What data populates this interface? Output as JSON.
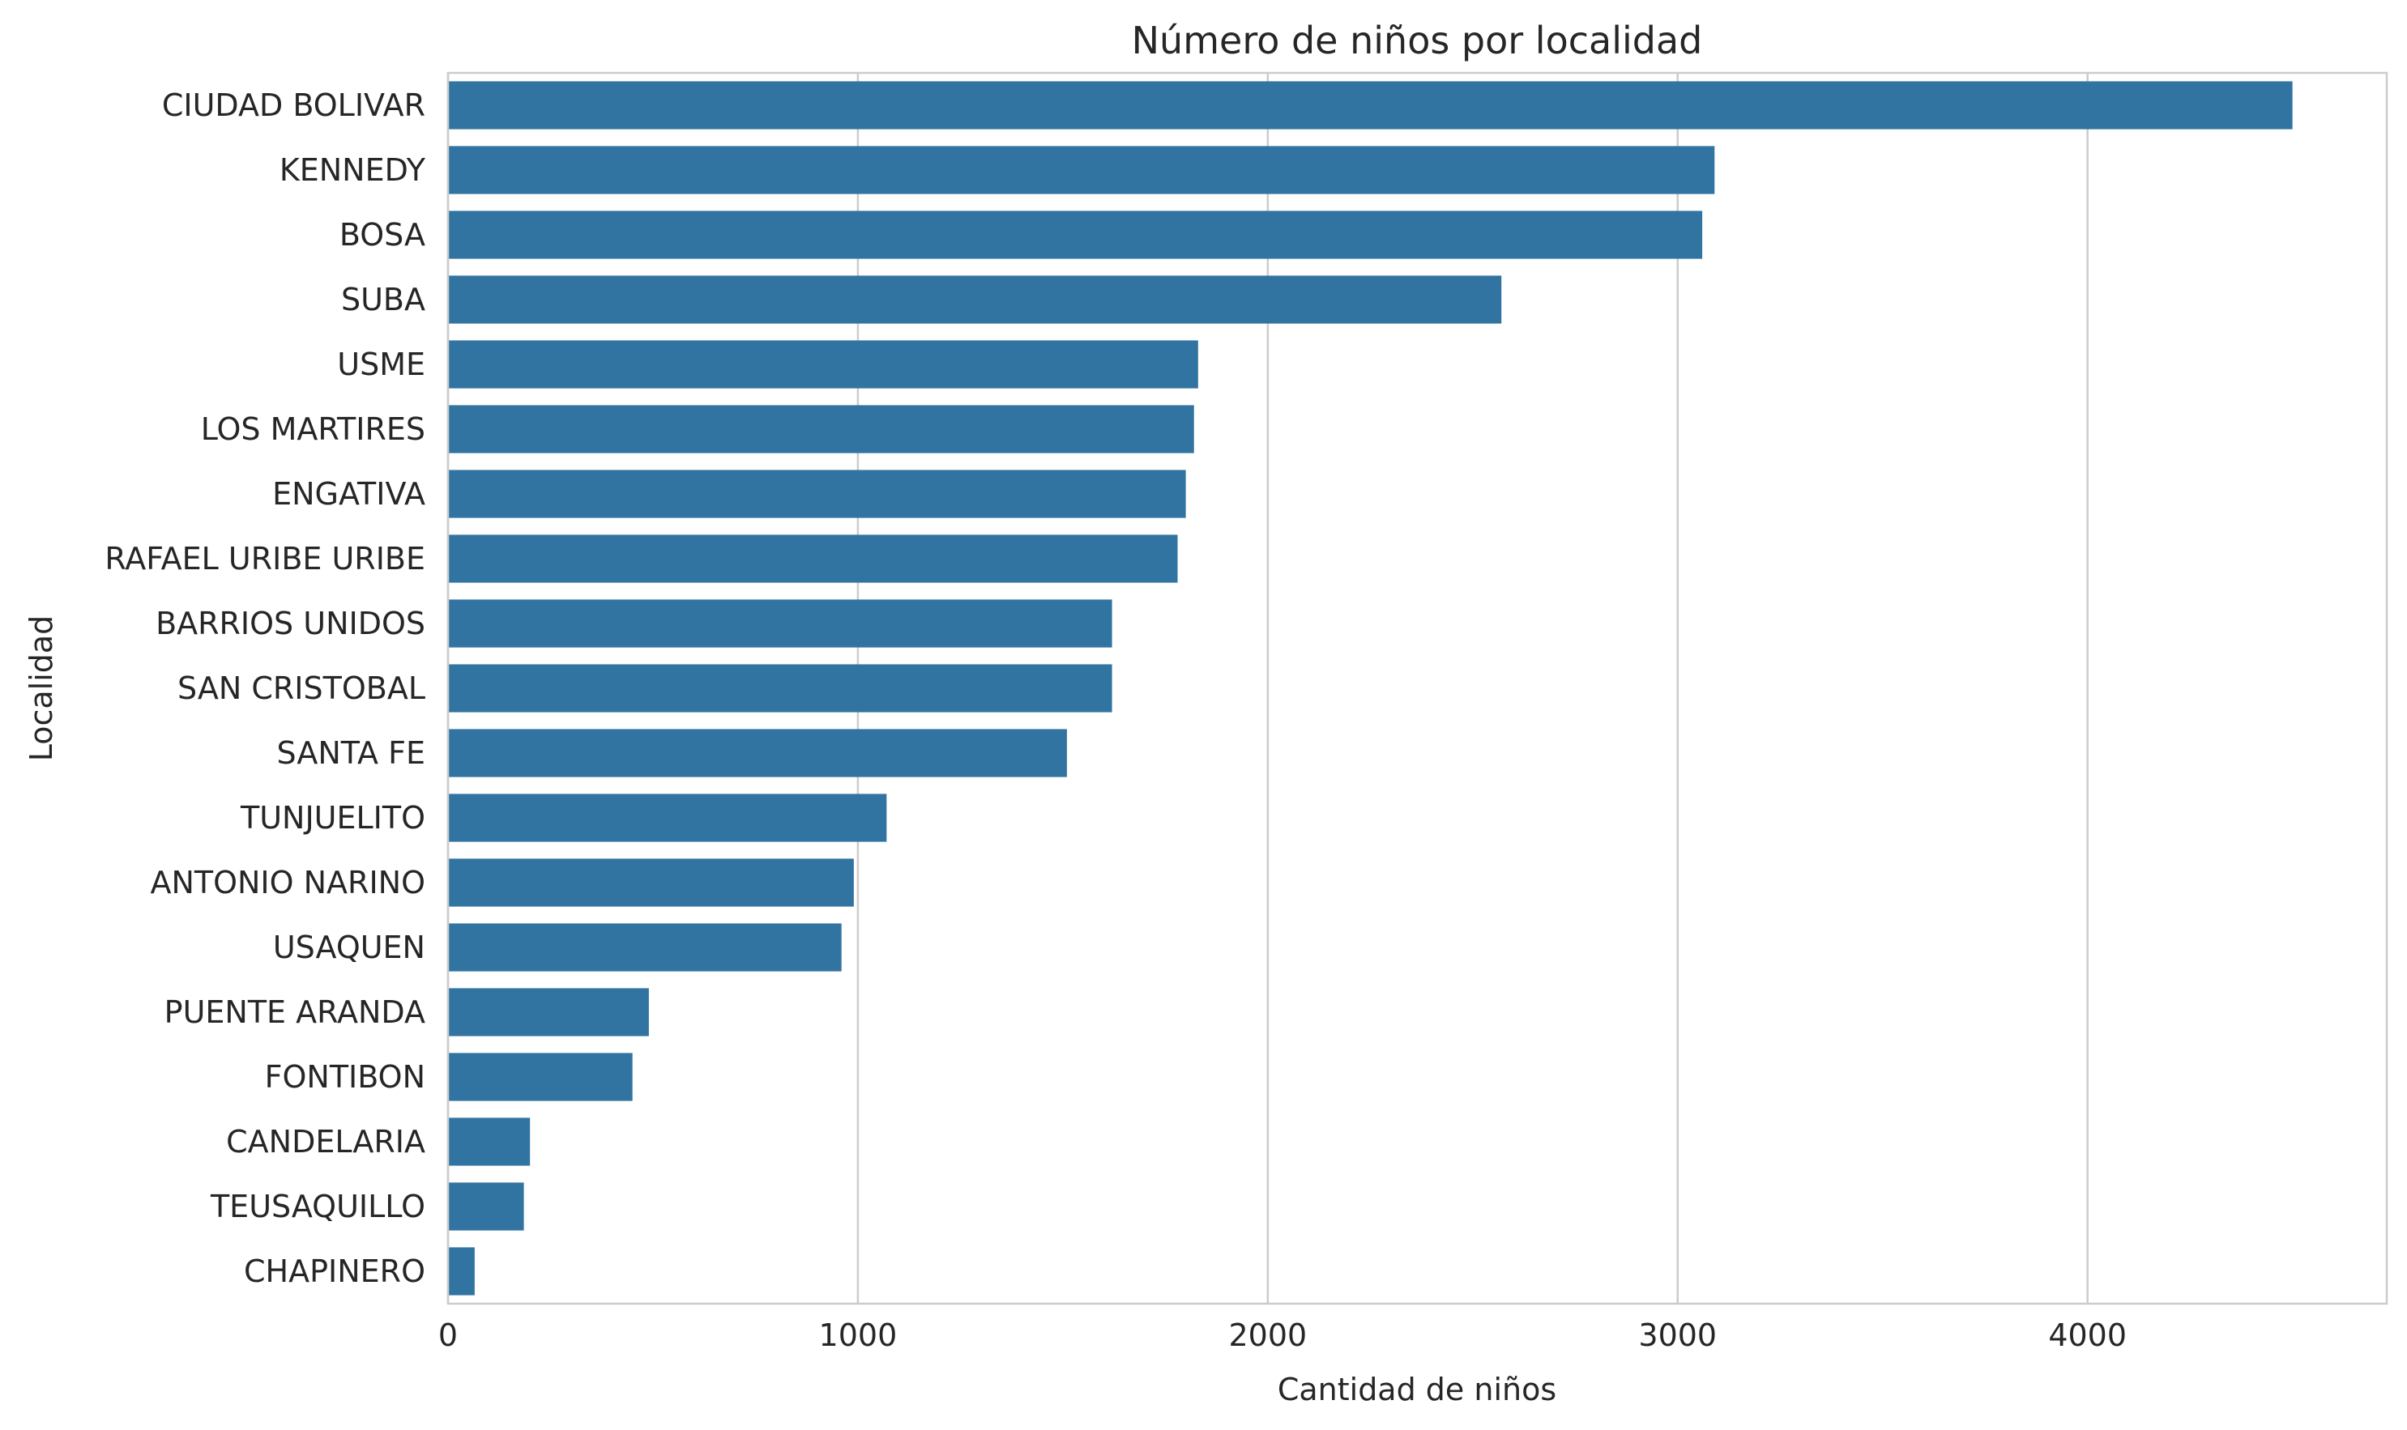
{
  "chart_data": {
    "type": "bar",
    "orientation": "horizontal",
    "title": "Número de niños por localidad",
    "xlabel": "Cantidad de niños",
    "ylabel": "Localidad",
    "xlim": [
      0,
      4730
    ],
    "xticks": [
      0,
      1000,
      2000,
      3000,
      4000
    ],
    "grid": true,
    "bar_color": "#3274a1",
    "categories": [
      "CIUDAD BOLIVAR",
      "KENNEDY",
      "BOSA",
      "SUBA",
      "USME",
      "LOS MARTIRES",
      "ENGATIVA",
      "RAFAEL URIBE URIBE",
      "BARRIOS UNIDOS",
      "SAN CRISTOBAL",
      "SANTA FE",
      "TUNJUELITO",
      "ANTONIO NARINO",
      "USAQUEN",
      "PUENTE ARANDA",
      "FONTIBON",
      "CANDELARIA",
      "TEUSAQUILLO",
      "CHAPINERO"
    ],
    "values": [
      4500,
      3090,
      3060,
      2570,
      1830,
      1820,
      1800,
      1780,
      1620,
      1620,
      1510,
      1070,
      990,
      960,
      490,
      450,
      200,
      185,
      65
    ]
  }
}
